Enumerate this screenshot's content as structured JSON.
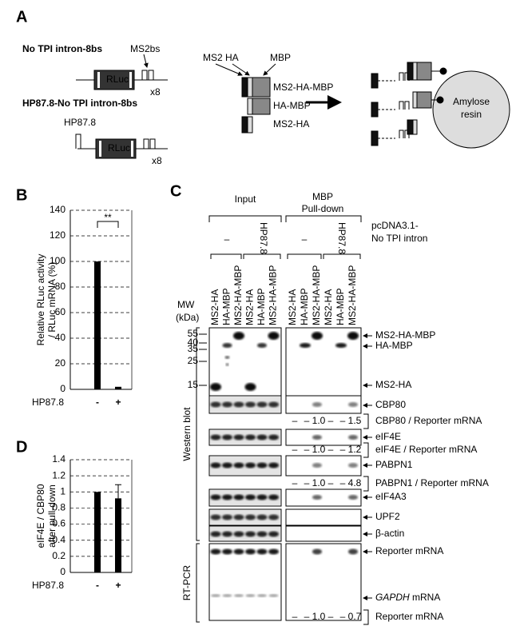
{
  "chart_data": [
    {
      "type": "bar",
      "panel": "B",
      "ylabel": [
        "Relative  RLuc activity",
        "/ RLuc mRNA (%)"
      ],
      "xlabel": "HP87.8",
      "categories": [
        "-",
        "+"
      ],
      "values": [
        100,
        2
      ],
      "annotation": "**",
      "color": "#000000",
      "ylim": [
        0,
        140
      ],
      "yticks": [
        0,
        20,
        40,
        60,
        80,
        100,
        120,
        140
      ],
      "grid": true
    },
    {
      "type": "bar",
      "panel": "D",
      "ylabel": [
        "eIF4E / CBP80",
        "after pull-down"
      ],
      "xlabel": "HP87.8",
      "categories": [
        "-",
        "+"
      ],
      "values": [
        1,
        0.92
      ],
      "errors": [
        null,
        0.17
      ],
      "color": "#000000",
      "ylim": [
        0,
        1.4
      ],
      "yticks": [
        0,
        0.2,
        0.4,
        0.6,
        0.8,
        1,
        1.2,
        1.4
      ],
      "grid": true
    }
  ],
  "panel_a": {
    "label": "A",
    "construct1": "No TPI intron-8bs",
    "ms2bs": "MS2bs",
    "rluc": [
      "RLuc",
      "RLuc"
    ],
    "x8": [
      "x8",
      "x8"
    ],
    "construct2": "HP87.8-No TPI intron-8bs",
    "hp": "HP87.8",
    "domains": [
      "MS2",
      "HA",
      "MBP"
    ],
    "proteins": [
      "MS2-HA-MBP",
      "HA-MBP",
      "MS2-HA"
    ],
    "resin": [
      "Amylose",
      "resin"
    ]
  },
  "panel_c": {
    "label": "C",
    "input": "Input",
    "pulldown": [
      "MBP",
      "Pull-down"
    ],
    "plasmid": [
      "pcDNA3.1-",
      "No TPI intron"
    ],
    "conditions": [
      "–",
      "HP87.8",
      "–",
      "HP87.8"
    ],
    "lanes": [
      "MS2-HA",
      "HA-MBP",
      "MS2-HA-MBP",
      "MS2-HA",
      "HA-MBP",
      "MS2-HA-MBP",
      "MS2-HA",
      "HA-MBP",
      "MS2-HA-MBP",
      "MS2-HA",
      "HA-MBP",
      "MS2-HA-MBP"
    ],
    "mw_title": [
      "MW",
      "(kDa)"
    ],
    "mw": [
      55,
      40,
      35,
      25,
      15
    ],
    "methods": [
      "Western blot",
      "RT-PCR"
    ],
    "bands": [
      "MS2-HA-MBP",
      "HA-MBP",
      "MS2-HA",
      "CBP80",
      "eIF4E",
      "PABPN1",
      "eIF4A3",
      "UPF2",
      "β-actin",
      "Reporter mRNA"
    ],
    "gapdh": [
      "GAPDH",
      " mRNA"
    ],
    "quant": [
      {
        "values": [
          "–",
          "–",
          "1.0",
          "–",
          "–",
          "1.5"
        ],
        "label": "CBP80 / Reporter mRNA"
      },
      {
        "values": [
          "–",
          "–",
          "1.0",
          "–",
          "–",
          "1.2"
        ],
        "label": "eIF4E / Reporter mRNA"
      },
      {
        "values": [
          "–",
          "–",
          "1.0",
          "–",
          "–",
          "4.8"
        ],
        "label": "PABPN1 / Reporter mRNA"
      },
      {
        "values": [
          "–",
          "–",
          "1.0",
          "–",
          "–",
          "0.7"
        ],
        "label": "Reporter mRNA"
      }
    ]
  }
}
